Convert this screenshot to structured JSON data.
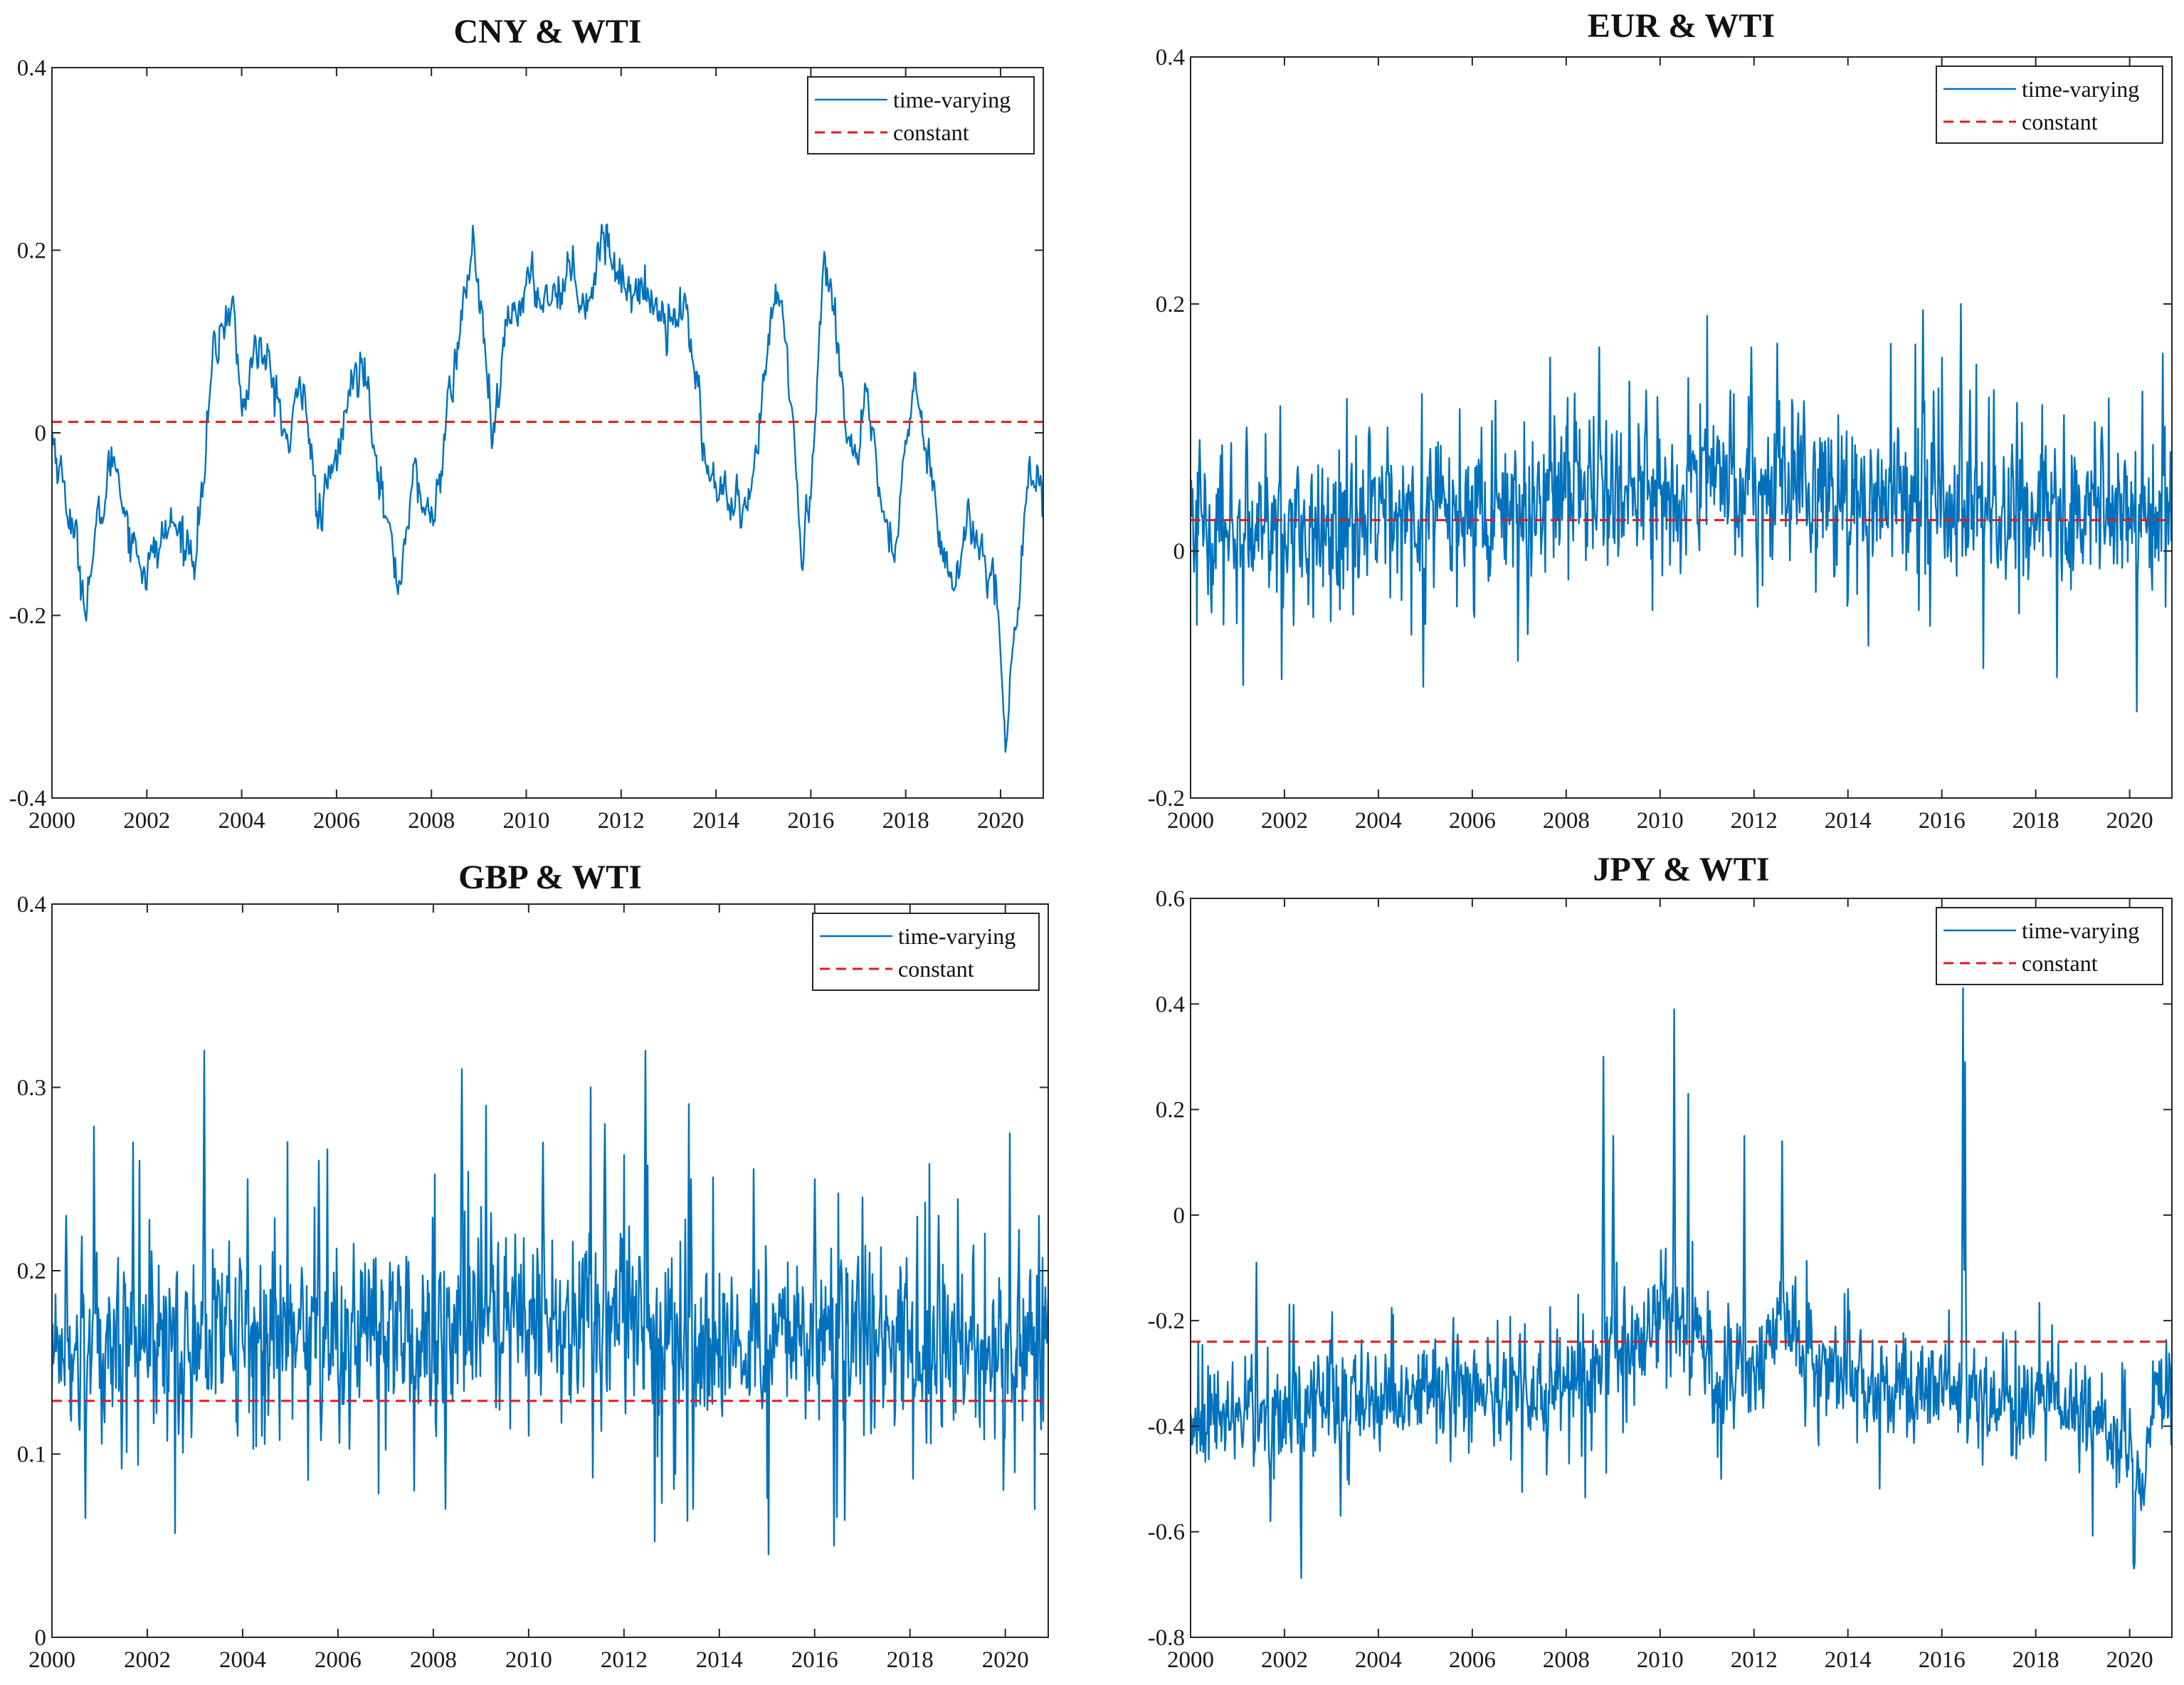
{
  "colors": {
    "time_varying": "#0072BD",
    "constant": "#E41A1C",
    "axis": "#262626"
  },
  "chart_data": [
    {
      "type": "line",
      "title": "CNY & WTI",
      "xlabel": "",
      "ylabel": "",
      "xlim": [
        2000,
        2020.9
      ],
      "ylim": [
        -0.4,
        0.4
      ],
      "x_ticks": [
        2000,
        2002,
        2004,
        2006,
        2008,
        2010,
        2012,
        2014,
        2016,
        2018,
        2020
      ],
      "x_tick_labels": [
        "2000",
        "2002",
        "2004",
        "2006",
        "2008",
        "2010",
        "2012",
        "2014",
        "2016",
        "2018",
        "2020"
      ],
      "y_ticks": [
        -0.4,
        -0.2,
        0,
        0.2,
        0.4
      ],
      "y_tick_labels": [
        "-0.4",
        "-0.2",
        "0",
        "0.2",
        "0.4"
      ],
      "legend": [
        "time-varying",
        "constant"
      ],
      "legend_position": "top-right",
      "constant_value": 0.012,
      "series": [
        {
          "name": "time-varying",
          "style": "smooth",
          "noise": 0.012,
          "x": [
            2000,
            2000.3,
            2000.7,
            2001,
            2001.3,
            2001.7,
            2002,
            2002.5,
            2003,
            2003.2,
            2003.4,
            2003.8,
            2004,
            2004.3,
            2004.7,
            2005,
            2005.3,
            2005.6,
            2006,
            2006.3,
            2006.6,
            2007,
            2007.3,
            2007.6,
            2008,
            2008.3,
            2008.7,
            2008.9,
            2009.1,
            2009.3,
            2009.6,
            2010,
            2010.5,
            2011,
            2011.3,
            2011.6,
            2012,
            2012.5,
            2013,
            2013.3,
            2013.6,
            2013.8,
            2014,
            2014.3,
            2014.7,
            2015,
            2015.3,
            2015.6,
            2015.8,
            2016,
            2016.3,
            2016.6,
            2016.9,
            2017.2,
            2017.5,
            2017.8,
            2018,
            2018.2,
            2018.5,
            2018.8,
            2019,
            2019.3,
            2019.6,
            2019.9,
            2020.1,
            2020.3,
            2020.6,
            2020.9
          ],
          "y": [
            0.0,
            -0.07,
            -0.18,
            -0.1,
            -0.02,
            -0.12,
            -0.15,
            -0.1,
            -0.13,
            -0.05,
            0.08,
            0.15,
            0.02,
            0.1,
            0.05,
            -0.02,
            0.07,
            -0.1,
            -0.03,
            0.05,
            0.08,
            -0.08,
            -0.17,
            -0.05,
            -0.1,
            0.0,
            0.15,
            0.21,
            0.1,
            -0.02,
            0.12,
            0.16,
            0.15,
            0.18,
            0.14,
            0.22,
            0.17,
            0.15,
            0.13,
            0.14,
            0.06,
            -0.04,
            -0.06,
            -0.08,
            -0.1,
            0.05,
            0.16,
            0.04,
            -0.15,
            -0.05,
            0.2,
            0.08,
            -0.03,
            0.02,
            -0.08,
            -0.15,
            0.0,
            0.05,
            -0.03,
            -0.12,
            -0.18,
            -0.1,
            -0.12,
            -0.15,
            -0.36,
            -0.22,
            -0.03,
            -0.07
          ]
        }
      ]
    },
    {
      "type": "line",
      "title": "EUR & WTI",
      "xlabel": "",
      "ylabel": "",
      "xlim": [
        2000,
        2020.9
      ],
      "ylim": [
        -0.2,
        0.4
      ],
      "x_ticks": [
        2000,
        2002,
        2004,
        2006,
        2008,
        2010,
        2012,
        2014,
        2016,
        2018,
        2020
      ],
      "x_tick_labels": [
        "2000",
        "2002",
        "2004",
        "2006",
        "2008",
        "2010",
        "2012",
        "2014",
        "2016",
        "2018",
        "2020"
      ],
      "y_ticks": [
        -0.2,
        0,
        0.2,
        0.4
      ],
      "y_tick_labels": [
        "-0.2",
        "0",
        "0.2",
        "0.4"
      ],
      "legend": [
        "time-varying",
        "constant"
      ],
      "legend_position": "top-right",
      "constant_value": 0.025,
      "series": [
        {
          "name": "time-varying",
          "style": "noisy",
          "noise": 0.028,
          "x": [
            2000,
            2002,
            2004,
            2006,
            2008,
            2010,
            2012,
            2014,
            2016,
            2018,
            2020,
            2020.9
          ],
          "y": [
            0.02,
            0.02,
            0.03,
            0.03,
            0.05,
            0.05,
            0.05,
            0.04,
            0.04,
            0.03,
            0.03,
            0.04
          ],
          "spikes": [
            [
              2000.2,
              0.09
            ],
            [
              2001.2,
              0.1
            ],
            [
              2002.2,
              -0.06
            ],
            [
              2003.8,
              0.1
            ],
            [
              2004.2,
              0.1
            ],
            [
              2004.95,
              -0.11
            ],
            [
              2006.2,
              0.1
            ],
            [
              2008.7,
              0.165
            ],
            [
              2009.7,
              0.13
            ],
            [
              2010.6,
              0.14
            ],
            [
              2011.5,
              0.13
            ],
            [
              2011.95,
              0.165
            ],
            [
              2012.5,
              0.168
            ],
            [
              2013.8,
              0.11
            ],
            [
              2015.6,
              0.195
            ],
            [
              2016.4,
              0.2
            ],
            [
              2016.6,
              0.13
            ],
            [
              2017.6,
              0.12
            ],
            [
              2018.6,
              0.11
            ],
            [
              2020.15,
              -0.13
            ],
            [
              2020.7,
              0.16
            ],
            [
              2019.4,
              0.1
            ]
          ]
        }
      ]
    },
    {
      "type": "line",
      "title": "GBP & WTI",
      "xlabel": "",
      "ylabel": "",
      "xlim": [
        2000,
        2020.9
      ],
      "ylim": [
        0,
        0.4
      ],
      "x_ticks": [
        2000,
        2002,
        2004,
        2006,
        2008,
        2010,
        2012,
        2014,
        2016,
        2018,
        2020
      ],
      "x_tick_labels": [
        "2000",
        "2002",
        "2004",
        "2006",
        "2008",
        "2010",
        "2012",
        "2014",
        "2016",
        "2018",
        "2020"
      ],
      "y_ticks": [
        0,
        0.1,
        0.2,
        0.3,
        0.4
      ],
      "y_tick_labels": [
        "0",
        "0.1",
        "0.2",
        "0.3",
        "0.4"
      ],
      "legend": [
        "time-varying",
        "constant"
      ],
      "legend_position": "top-right",
      "constant_value": 0.129,
      "series": [
        {
          "name": "time-varying",
          "style": "noisy",
          "noise": 0.022,
          "x": [
            2000,
            2002,
            2004,
            2006,
            2008,
            2010,
            2012,
            2014,
            2016,
            2018,
            2020,
            2020.9
          ],
          "y": [
            0.16,
            0.16,
            0.165,
            0.165,
            0.17,
            0.17,
            0.17,
            0.16,
            0.165,
            0.16,
            0.16,
            0.16
          ],
          "spikes": [
            [
              2000.3,
              0.23
            ],
            [
              2000.7,
              0.065
            ],
            [
              2001.7,
              0.27
            ],
            [
              2003.2,
              0.32
            ],
            [
              2004.1,
              0.25
            ],
            [
              2005.6,
              0.26
            ],
            [
              2007.6,
              0.08
            ],
            [
              2008.25,
              0.07
            ],
            [
              2008.6,
              0.31
            ],
            [
              2010.3,
              0.27
            ],
            [
              2011.3,
              0.3
            ],
            [
              2011.6,
              0.28
            ],
            [
              2012.45,
              0.32
            ],
            [
              2013.45,
              0.07
            ],
            [
              2013.4,
              0.25
            ],
            [
              2016.4,
              0.05
            ],
            [
              2016.0,
              0.25
            ],
            [
              2017.0,
              0.24
            ],
            [
              2018.6,
              0.23
            ],
            [
              2020.1,
              0.275
            ],
            [
              2020.7,
              0.23
            ],
            [
              2020.2,
              0.09
            ]
          ]
        }
      ]
    },
    {
      "type": "line",
      "title": "JPY & WTI",
      "xlabel": "",
      "ylabel": "",
      "xlim": [
        2000,
        2020.9
      ],
      "ylim": [
        -0.8,
        0.6
      ],
      "x_ticks": [
        2000,
        2002,
        2004,
        2006,
        2008,
        2010,
        2012,
        2014,
        2016,
        2018,
        2020
      ],
      "x_tick_labels": [
        "2000",
        "2002",
        "2004",
        "2006",
        "2008",
        "2010",
        "2012",
        "2014",
        "2016",
        "2018",
        "2020"
      ],
      "y_ticks": [
        -0.8,
        -0.6,
        -0.4,
        -0.2,
        0,
        0.2,
        0.4,
        0.6
      ],
      "y_tick_labels": [
        "-0.8",
        "-0.6",
        "-0.4",
        "-0.2",
        "0",
        "0.2",
        "0.4",
        "0.6"
      ],
      "legend": [
        "time-varying",
        "constant"
      ],
      "legend_position": "top-right",
      "constant_value": -0.24,
      "series": [
        {
          "name": "time-varying",
          "style": "noisy",
          "noise": 0.045,
          "x": [
            2000,
            2002,
            2004,
            2006,
            2008,
            2008.8,
            2009.5,
            2010.3,
            2011,
            2012,
            2012.6,
            2013.5,
            2014,
            2016,
            2018,
            2019.5,
            2020,
            2020.2,
            2020.5,
            2020.9
          ],
          "y": [
            -0.4,
            -0.36,
            -0.34,
            -0.34,
            -0.32,
            -0.28,
            -0.22,
            -0.2,
            -0.3,
            -0.3,
            -0.2,
            -0.3,
            -0.32,
            -0.34,
            -0.36,
            -0.38,
            -0.45,
            -0.55,
            -0.35,
            -0.3
          ],
          "spikes": [
            [
              2001.4,
              -0.09
            ],
            [
              2001.7,
              -0.58
            ],
            [
              2002.2,
              -0.17
            ],
            [
              2003.2,
              -0.57
            ],
            [
              2008.8,
              0.3
            ],
            [
              2009.0,
              0.15
            ],
            [
              2010.3,
              0.39
            ],
            [
              2010.6,
              0.23
            ],
            [
              2011.3,
              -0.5
            ],
            [
              2011.8,
              0.15
            ],
            [
              2012.6,
              0.14
            ],
            [
              2014.0,
              -0.14
            ],
            [
              2016.45,
              0.43
            ],
            [
              2016.5,
              0.29
            ],
            [
              2020.1,
              -0.67
            ],
            [
              2020.3,
              -0.55
            ]
          ]
        }
      ]
    }
  ]
}
